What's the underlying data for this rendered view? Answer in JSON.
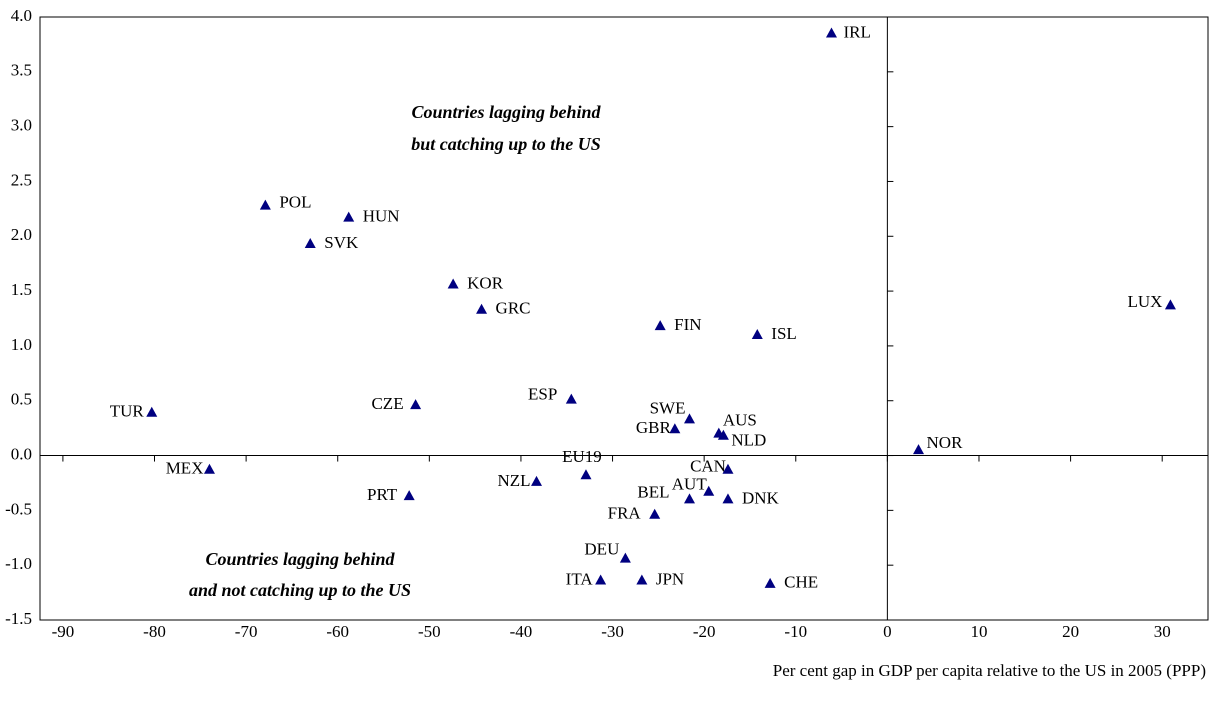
{
  "chart_data": {
    "type": "scatter",
    "xlabel": "Per cent gap in GDP per capita relative to the US in 2005 (PPP)",
    "annotations": [
      "Countries lagging behind",
      "but catching up to the US",
      "Countries lagging behind",
      "and not catching up to the US"
    ],
    "color": "#000080",
    "xlim": [
      -92.5,
      35
    ],
    "xticks": [
      -90,
      -80,
      -70,
      -60,
      -50,
      -40,
      -30,
      -20,
      -10,
      0,
      10,
      20,
      30
    ],
    "ylim": [
      -1.5,
      4.0
    ],
    "yticks": [
      {
        "value": -1.5,
        "label": "-1.5"
      },
      {
        "value": -1,
        "label": "-1.0"
      },
      {
        "value": -0.5,
        "label": "-0.5"
      },
      {
        "value": 0,
        "label": "0.0"
      },
      {
        "value": 0.5,
        "label": "0.5"
      },
      {
        "value": 1,
        "label": "1.0"
      },
      {
        "value": 1.5,
        "label": "1.5"
      },
      {
        "value": 2,
        "label": "2.0"
      },
      {
        "value": 2.5,
        "label": "2.5"
      },
      {
        "value": 3,
        "label": "3.0"
      },
      {
        "value": 3.5,
        "label": "3.5"
      },
      {
        "value": 4,
        "label": "4.0"
      }
    ],
    "points": [
      {
        "label": "IRL",
        "x": -6.1,
        "y": 3.85
      },
      {
        "label": "POL",
        "x": -67.9,
        "y": 2.28
      },
      {
        "label": "HUN",
        "x": -58.8,
        "y": 2.17
      },
      {
        "label": "SVK",
        "x": -63.0,
        "y": 1.93
      },
      {
        "label": "KOR",
        "x": -47.4,
        "y": 1.56
      },
      {
        "label": "GRC",
        "x": -44.3,
        "y": 1.33
      },
      {
        "label": "FIN",
        "x": -24.8,
        "y": 1.18
      },
      {
        "label": "ISL",
        "x": -14.2,
        "y": 1.1
      },
      {
        "label": "LUX",
        "x": 30.9,
        "y": 1.37
      },
      {
        "label": "TUR",
        "x": -80.3,
        "y": 0.39
      },
      {
        "label": "CZE",
        "x": -51.5,
        "y": 0.46
      },
      {
        "label": "ESP",
        "x": -34.5,
        "y": 0.51
      },
      {
        "label": "SWE",
        "x": -21.6,
        "y": 0.33
      },
      {
        "label": "GBR",
        "x": -23.2,
        "y": 0.24
      },
      {
        "label": "AUS",
        "x": -18.4,
        "y": 0.2
      },
      {
        "label": "NLD",
        "x": -17.9,
        "y": 0.18
      },
      {
        "label": "NOR",
        "x": 3.4,
        "y": 0.05
      },
      {
        "label": "MEX",
        "x": -74.0,
        "y": -0.13
      },
      {
        "label": "EU19",
        "x": -32.9,
        "y": -0.18
      },
      {
        "label": "NZL",
        "x": -38.3,
        "y": -0.24
      },
      {
        "label": "CAN",
        "x": -17.4,
        "y": -0.13
      },
      {
        "label": "AUT",
        "x": -19.5,
        "y": -0.33
      },
      {
        "label": "BEL",
        "x": -21.6,
        "y": -0.4
      },
      {
        "label": "DNK",
        "x": -17.4,
        "y": -0.4
      },
      {
        "label": "PRT",
        "x": -52.2,
        "y": -0.37
      },
      {
        "label": "FRA",
        "x": -25.4,
        "y": -0.54
      },
      {
        "label": "DEU",
        "x": -28.6,
        "y": -0.94
      },
      {
        "label": "ITA",
        "x": -31.3,
        "y": -1.14
      },
      {
        "label": "JPN",
        "x": -26.8,
        "y": -1.14
      },
      {
        "label": "CHE",
        "x": -12.8,
        "y": -1.17
      }
    ]
  }
}
